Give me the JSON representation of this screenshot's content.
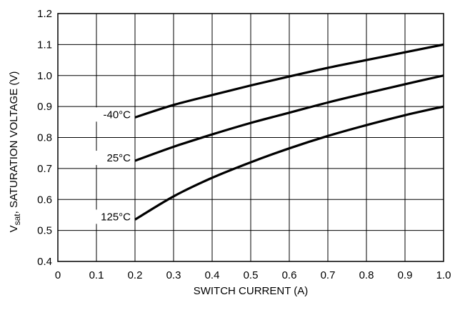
{
  "chart_data": {
    "type": "line",
    "title": "",
    "xlabel": "SWITCH CURRENT (A)",
    "ylabel_main": "V",
    "ylabel_sub": "sat",
    "ylabel_rest": ", SATURATION VOLTAGE (V)",
    "xlim": [
      0,
      1.0
    ],
    "ylim": [
      0.4,
      1.2
    ],
    "grid": true,
    "x_ticks": [
      "0",
      "0.1",
      "0.2",
      "0.3",
      "0.4",
      "0.5",
      "0.6",
      "0.7",
      "0.8",
      "0.9",
      "1.0"
    ],
    "y_ticks": [
      "0.4",
      "0.5",
      "0.6",
      "0.7",
      "0.8",
      "0.9",
      "1.0",
      "1.1",
      "1.2"
    ],
    "x": [
      0.2,
      0.3,
      0.4,
      0.5,
      0.6,
      0.7,
      0.8,
      0.9,
      1.0
    ],
    "series": [
      {
        "name": "-40°C",
        "values": [
          0.865,
          0.905,
          0.937,
          0.968,
          0.997,
          1.025,
          1.05,
          1.075,
          1.1
        ]
      },
      {
        "name": "25°C",
        "values": [
          0.725,
          0.77,
          0.81,
          0.847,
          0.88,
          0.913,
          0.943,
          0.972,
          1.0
        ]
      },
      {
        "name": "125°C",
        "values": [
          0.535,
          0.61,
          0.67,
          0.72,
          0.765,
          0.805,
          0.84,
          0.872,
          0.9
        ]
      }
    ]
  }
}
